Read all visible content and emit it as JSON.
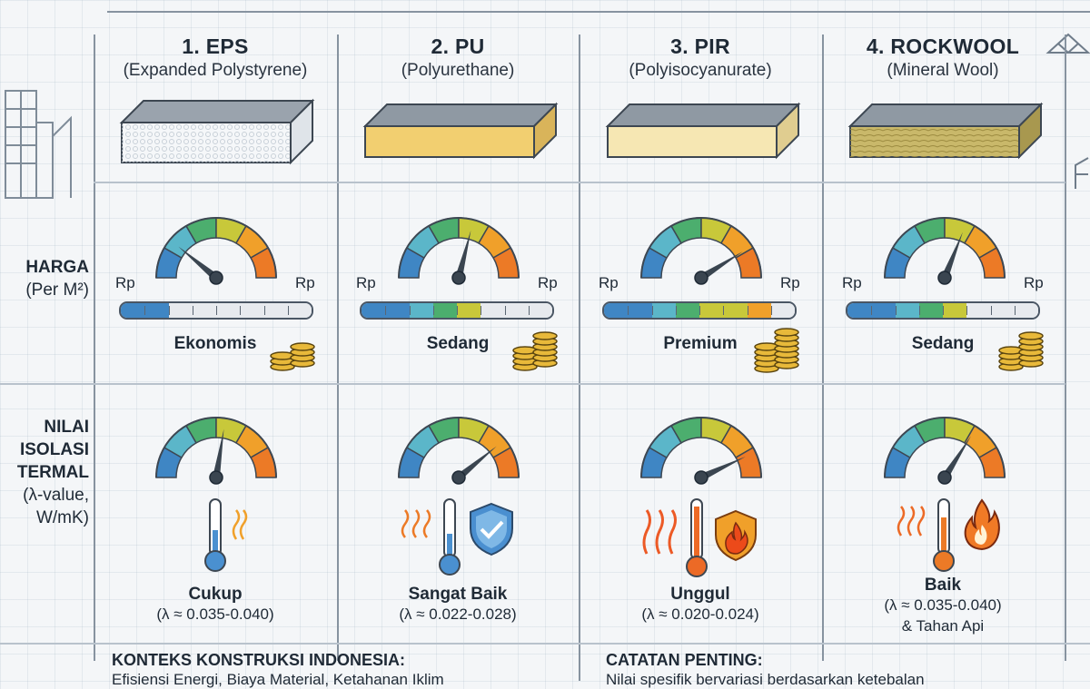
{
  "columns": [
    {
      "title": "1. EPS",
      "subtitle": "(Expanded Polystyrene)",
      "price_level": "Ekonomis",
      "price_value": 0.22,
      "insulation_value": 0.55,
      "rating": "Cukup",
      "lambda": "(λ ≈ 0.035-0.040)",
      "extra": ""
    },
    {
      "title": "2. PU",
      "subtitle": "(Polyurethane)",
      "price_level": "Sedang",
      "price_value": 0.58,
      "insulation_value": 0.78,
      "rating": "Sangat Baik",
      "lambda": "(λ ≈ 0.022-0.028)",
      "extra": ""
    },
    {
      "title": "3. PIR",
      "subtitle": "(Polyisocyanurate)",
      "price_level": "Premium",
      "price_value": 0.82,
      "insulation_value": 0.86,
      "rating": "Unggul",
      "lambda": "(λ ≈ 0.020-0.024)",
      "extra": ""
    },
    {
      "title": "4. ROCKWOOL",
      "subtitle": "(Mineral Wool)",
      "price_level": "Sedang",
      "price_value": 0.62,
      "insulation_value": 0.68,
      "rating": "Baik",
      "lambda": "(λ ≈ 0.035-0.040)",
      "extra": "& Tahan Api"
    }
  ],
  "rows": {
    "price": {
      "title": "HARGA",
      "sub": "(Per M²)"
    },
    "thermal": {
      "line1": "NILAI",
      "line2": "ISOLASI",
      "line3": "TERMAL",
      "line4": "(λ-value,",
      "line5": "W/mK)"
    }
  },
  "currency": {
    "low": "Rp",
    "high": "Rp"
  },
  "footer": {
    "left_title": "KONTEKS KONSTRUKSI INDONESIA:",
    "left_text": "Efisiensi Energi, Biaya Material, Ketahanan Iklim",
    "right_title": "CATATAN PENTING:",
    "right_text": "Nilai spesifik bervariasi berdasarkan ketebalan"
  },
  "colors": {
    "gauge": [
      "#3f86c4",
      "#5bb6c9",
      "#4cae6e",
      "#c8c83a",
      "#f0a02a",
      "#ec7a26"
    ],
    "needle": "#3a4550",
    "eps": "#f2f4f6",
    "pu": "#f3d37a",
    "pir": "#f5e6b0",
    "rockwool": "#c9b86a"
  }
}
